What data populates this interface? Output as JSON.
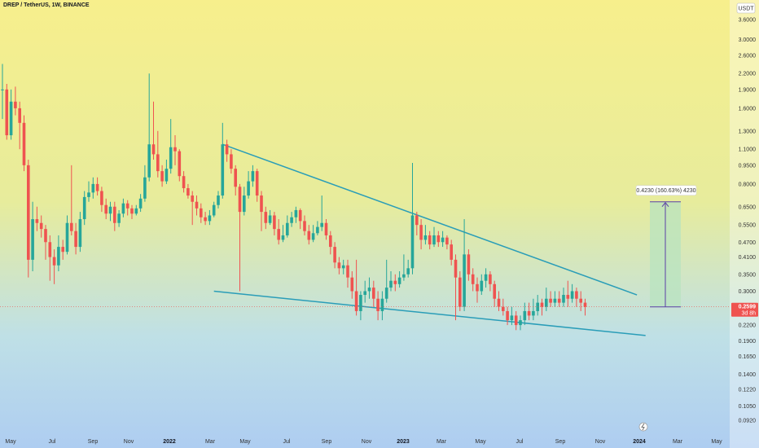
{
  "header": {
    "title": "DREP / TetherUS, 1W, BINANCE"
  },
  "colors": {
    "up": "#26a69a",
    "down": "#ef5350",
    "trendline": "#2a9db8",
    "projection_arrow": "#5b3fa6",
    "projection_fill": "#b8e3bf",
    "price_label": "#ef5350"
  },
  "chart_data": {
    "type": "candlestick",
    "y_scale": "log",
    "ylim": [
      0.088,
      4.0
    ],
    "currency": "USDT",
    "y_ticks": [
      "3.6000",
      "3.0000",
      "2.6000",
      "2.2000",
      "1.9000",
      "1.6000",
      "1.3000",
      "1.1000",
      "0.9500",
      "0.8000",
      "0.6500",
      "0.5500",
      "0.4700",
      "0.4100",
      "0.3500",
      "0.3000",
      "0.2599",
      "0.2200",
      "0.1900",
      "0.1650",
      "0.1400",
      "0.1220",
      "0.1050",
      "0.0920"
    ],
    "x_ticks": [
      "May",
      "Jul",
      "Sep",
      "Nov",
      "2022",
      "Mar",
      "May",
      "Jul",
      "Sep",
      "Nov",
      "2023",
      "Mar",
      "May",
      "Jul",
      "Sep",
      "Nov",
      "2024",
      "Mar",
      "May"
    ],
    "last_price": "0.2599",
    "countdown": "3d 8h",
    "measure_label": "0.4230 (160.63%) 4230",
    "candles": [
      [
        1.9,
        1.9,
        2.4,
        1.45
      ],
      [
        1.9,
        1.25,
        2.0,
        1.2
      ],
      [
        1.25,
        1.7,
        1.9,
        1.2
      ],
      [
        1.7,
        1.6,
        1.95,
        1.5
      ],
      [
        1.6,
        1.4,
        1.7,
        1.1
      ],
      [
        1.4,
        0.95,
        1.5,
        0.9
      ],
      [
        0.95,
        0.4,
        1.0,
        0.34
      ],
      [
        0.4,
        0.58,
        0.68,
        0.36
      ],
      [
        0.58,
        0.56,
        0.65,
        0.52
      ],
      [
        0.56,
        0.53,
        0.6,
        0.49
      ],
      [
        0.53,
        0.47,
        0.55,
        0.4
      ],
      [
        0.47,
        0.41,
        0.5,
        0.33
      ],
      [
        0.41,
        0.38,
        0.44,
        0.32
      ],
      [
        0.38,
        0.45,
        0.5,
        0.36
      ],
      [
        0.45,
        0.43,
        0.48,
        0.4
      ],
      [
        0.43,
        0.56,
        0.6,
        0.42
      ],
      [
        0.56,
        0.52,
        0.95,
        0.5
      ],
      [
        0.52,
        0.45,
        0.56,
        0.42
      ],
      [
        0.45,
        0.58,
        0.62,
        0.43
      ],
      [
        0.58,
        0.71,
        0.75,
        0.55
      ],
      [
        0.71,
        0.74,
        0.82,
        0.68
      ],
      [
        0.74,
        0.8,
        0.85,
        0.7
      ],
      [
        0.8,
        0.75,
        0.85,
        0.72
      ],
      [
        0.75,
        0.66,
        0.78,
        0.62
      ],
      [
        0.66,
        0.61,
        0.7,
        0.58
      ],
      [
        0.61,
        0.65,
        0.68,
        0.57
      ],
      [
        0.65,
        0.56,
        0.68,
        0.52
      ],
      [
        0.56,
        0.61,
        0.63,
        0.54
      ],
      [
        0.61,
        0.67,
        0.7,
        0.59
      ],
      [
        0.67,
        0.64,
        0.69,
        0.6
      ],
      [
        0.64,
        0.61,
        0.66,
        0.58
      ],
      [
        0.61,
        0.64,
        0.66,
        0.6
      ],
      [
        0.64,
        0.7,
        0.73,
        0.62
      ],
      [
        0.7,
        0.85,
        0.95,
        0.68
      ],
      [
        0.85,
        1.15,
        2.2,
        0.82
      ],
      [
        1.15,
        1.05,
        1.7,
        1.0
      ],
      [
        1.05,
        0.9,
        1.3,
        0.85
      ],
      [
        0.9,
        0.82,
        0.95,
        0.78
      ],
      [
        0.82,
        0.92,
        1.0,
        0.8
      ],
      [
        0.92,
        1.12,
        1.45,
        0.88
      ],
      [
        1.12,
        1.08,
        1.25,
        0.95
      ],
      [
        1.08,
        0.86,
        1.1,
        0.82
      ],
      [
        0.86,
        0.77,
        0.9,
        0.74
      ],
      [
        0.77,
        0.72,
        0.8,
        0.7
      ],
      [
        0.72,
        0.68,
        0.75,
        0.55
      ],
      [
        0.68,
        0.64,
        0.72,
        0.6
      ],
      [
        0.64,
        0.59,
        0.67,
        0.56
      ],
      [
        0.59,
        0.57,
        0.62,
        0.55
      ],
      [
        0.57,
        0.6,
        0.63,
        0.55
      ],
      [
        0.6,
        0.66,
        0.68,
        0.59
      ],
      [
        0.66,
        0.72,
        0.75,
        0.64
      ],
      [
        0.72,
        1.15,
        1.4,
        0.7
      ],
      [
        1.15,
        1.05,
        1.2,
        0.98
      ],
      [
        1.05,
        0.92,
        1.1,
        0.88
      ],
      [
        0.92,
        0.78,
        0.95,
        0.72
      ],
      [
        0.78,
        0.62,
        0.8,
        0.3
      ],
      [
        0.62,
        0.72,
        0.78,
        0.6
      ],
      [
        0.72,
        0.82,
        0.9,
        0.7
      ],
      [
        0.82,
        0.9,
        0.95,
        0.78
      ],
      [
        0.9,
        0.72,
        0.92,
        0.68
      ],
      [
        0.72,
        0.62,
        0.75,
        0.52
      ],
      [
        0.62,
        0.56,
        0.65,
        0.53
      ],
      [
        0.56,
        0.6,
        0.63,
        0.55
      ],
      [
        0.6,
        0.53,
        0.62,
        0.5
      ],
      [
        0.53,
        0.48,
        0.58,
        0.46
      ],
      [
        0.48,
        0.5,
        0.55,
        0.47
      ],
      [
        0.5,
        0.56,
        0.6,
        0.49
      ],
      [
        0.56,
        0.59,
        0.62,
        0.54
      ],
      [
        0.59,
        0.63,
        0.65,
        0.56
      ],
      [
        0.63,
        0.57,
        0.64,
        0.53
      ],
      [
        0.57,
        0.52,
        0.6,
        0.5
      ],
      [
        0.52,
        0.48,
        0.55,
        0.46
      ],
      [
        0.48,
        0.51,
        0.55,
        0.47
      ],
      [
        0.51,
        0.54,
        0.57,
        0.5
      ],
      [
        0.54,
        0.56,
        0.72,
        0.52
      ],
      [
        0.56,
        0.5,
        0.58,
        0.48
      ],
      [
        0.5,
        0.45,
        0.52,
        0.42
      ],
      [
        0.45,
        0.39,
        0.47,
        0.37
      ],
      [
        0.39,
        0.37,
        0.41,
        0.35
      ],
      [
        0.37,
        0.38,
        0.4,
        0.35
      ],
      [
        0.38,
        0.34,
        0.4,
        0.31
      ],
      [
        0.34,
        0.3,
        0.36,
        0.28
      ],
      [
        0.3,
        0.25,
        0.4,
        0.24
      ],
      [
        0.25,
        0.29,
        0.3,
        0.23
      ],
      [
        0.29,
        0.3,
        0.33,
        0.27
      ],
      [
        0.3,
        0.31,
        0.34,
        0.28
      ],
      [
        0.31,
        0.28,
        0.33,
        0.26
      ],
      [
        0.28,
        0.25,
        0.3,
        0.23
      ],
      [
        0.25,
        0.28,
        0.3,
        0.23
      ],
      [
        0.28,
        0.31,
        0.4,
        0.27
      ],
      [
        0.31,
        0.33,
        0.36,
        0.3
      ],
      [
        0.33,
        0.32,
        0.35,
        0.3
      ],
      [
        0.32,
        0.34,
        0.36,
        0.31
      ],
      [
        0.34,
        0.35,
        0.42,
        0.33
      ],
      [
        0.35,
        0.37,
        0.4,
        0.34
      ],
      [
        0.37,
        0.6,
        0.97,
        0.35
      ],
      [
        0.6,
        0.55,
        0.62,
        0.5
      ],
      [
        0.55,
        0.48,
        0.58,
        0.44
      ],
      [
        0.48,
        0.5,
        0.55,
        0.46
      ],
      [
        0.5,
        0.46,
        0.52,
        0.44
      ],
      [
        0.46,
        0.5,
        0.54,
        0.45
      ],
      [
        0.5,
        0.47,
        0.52,
        0.45
      ],
      [
        0.47,
        0.49,
        0.52,
        0.45
      ],
      [
        0.49,
        0.46,
        0.5,
        0.44
      ],
      [
        0.46,
        0.4,
        0.48,
        0.38
      ],
      [
        0.4,
        0.34,
        0.42,
        0.23
      ],
      [
        0.34,
        0.26,
        0.36,
        0.25
      ],
      [
        0.26,
        0.42,
        0.58,
        0.25
      ],
      [
        0.42,
        0.35,
        0.44,
        0.33
      ],
      [
        0.35,
        0.32,
        0.37,
        0.3
      ],
      [
        0.32,
        0.3,
        0.34,
        0.27
      ],
      [
        0.3,
        0.33,
        0.35,
        0.29
      ],
      [
        0.33,
        0.35,
        0.37,
        0.31
      ],
      [
        0.35,
        0.32,
        0.36,
        0.3
      ],
      [
        0.32,
        0.28,
        0.33,
        0.26
      ],
      [
        0.28,
        0.26,
        0.3,
        0.25
      ],
      [
        0.26,
        0.25,
        0.28,
        0.24
      ],
      [
        0.25,
        0.23,
        0.26,
        0.22
      ],
      [
        0.23,
        0.24,
        0.26,
        0.22
      ],
      [
        0.24,
        0.22,
        0.25,
        0.21
      ],
      [
        0.22,
        0.23,
        0.24,
        0.21
      ],
      [
        0.23,
        0.25,
        0.27,
        0.22
      ],
      [
        0.25,
        0.24,
        0.27,
        0.23
      ],
      [
        0.24,
        0.25,
        0.28,
        0.23
      ],
      [
        0.25,
        0.27,
        0.29,
        0.24
      ],
      [
        0.27,
        0.26,
        0.28,
        0.24
      ],
      [
        0.26,
        0.28,
        0.31,
        0.25
      ],
      [
        0.28,
        0.27,
        0.3,
        0.26
      ],
      [
        0.27,
        0.28,
        0.3,
        0.26
      ],
      [
        0.28,
        0.27,
        0.3,
        0.26
      ],
      [
        0.27,
        0.29,
        0.31,
        0.26
      ],
      [
        0.29,
        0.28,
        0.33,
        0.26
      ],
      [
        0.28,
        0.3,
        0.32,
        0.27
      ],
      [
        0.3,
        0.28,
        0.31,
        0.26
      ],
      [
        0.28,
        0.27,
        0.3,
        0.25
      ],
      [
        0.27,
        0.26,
        0.28,
        0.24
      ]
    ],
    "trendlines": [
      {
        "name": "upper-trendline",
        "p1": [
          51,
          1.15
        ],
        "p2": [
          147,
          0.29
        ]
      },
      {
        "name": "lower-trendline",
        "p1": [
          49,
          0.3
        ],
        "p2": [
          149,
          0.2
        ]
      }
    ],
    "measure": {
      "from_price": 0.2599,
      "to_price": 0.68
    }
  }
}
